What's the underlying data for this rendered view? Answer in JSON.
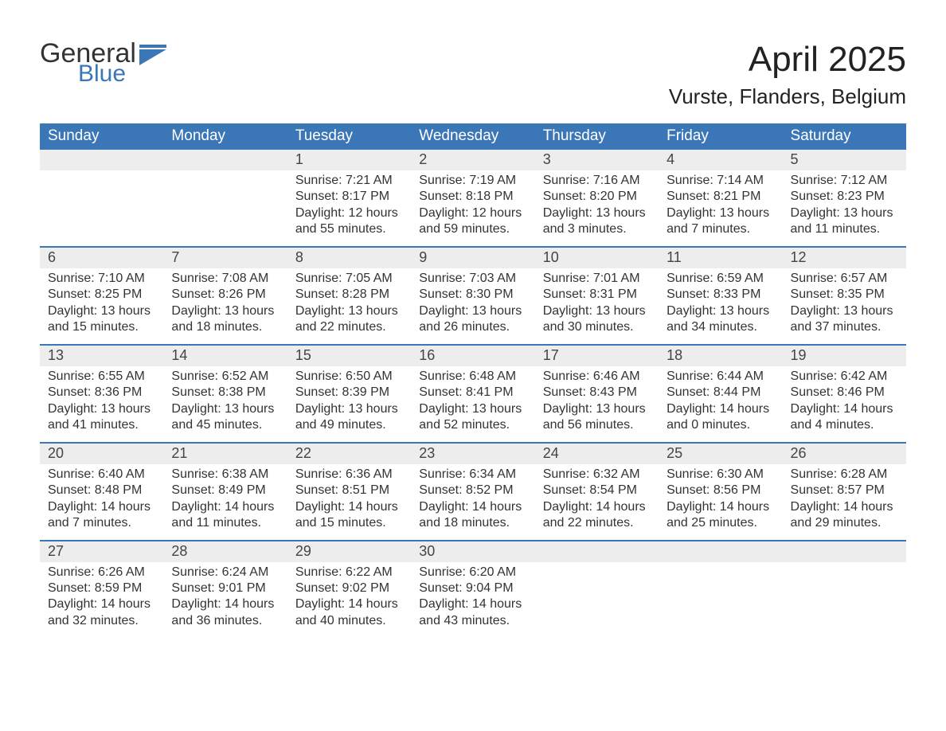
{
  "logo": {
    "word1": "General",
    "word2": "Blue"
  },
  "title": "April 2025",
  "location": "Vurste, Flanders, Belgium",
  "colors": {
    "header_bg": "#3b77b7",
    "header_text": "#ffffff",
    "daynum_bg": "#ededed",
    "text": "#333333",
    "rule": "#3b77b7",
    "logo_blue": "#3b77b7"
  },
  "day_headers": [
    "Sunday",
    "Monday",
    "Tuesday",
    "Wednesday",
    "Thursday",
    "Friday",
    "Saturday"
  ],
  "weeks": [
    [
      {
        "num": "",
        "sunrise": "",
        "sunset": "",
        "daylight": ""
      },
      {
        "num": "",
        "sunrise": "",
        "sunset": "",
        "daylight": ""
      },
      {
        "num": "1",
        "sunrise": "Sunrise: 7:21 AM",
        "sunset": "Sunset: 8:17 PM",
        "daylight": "Daylight: 12 hours and 55 minutes."
      },
      {
        "num": "2",
        "sunrise": "Sunrise: 7:19 AM",
        "sunset": "Sunset: 8:18 PM",
        "daylight": "Daylight: 12 hours and 59 minutes."
      },
      {
        "num": "3",
        "sunrise": "Sunrise: 7:16 AM",
        "sunset": "Sunset: 8:20 PM",
        "daylight": "Daylight: 13 hours and 3 minutes."
      },
      {
        "num": "4",
        "sunrise": "Sunrise: 7:14 AM",
        "sunset": "Sunset: 8:21 PM",
        "daylight": "Daylight: 13 hours and 7 minutes."
      },
      {
        "num": "5",
        "sunrise": "Sunrise: 7:12 AM",
        "sunset": "Sunset: 8:23 PM",
        "daylight": "Daylight: 13 hours and 11 minutes."
      }
    ],
    [
      {
        "num": "6",
        "sunrise": "Sunrise: 7:10 AM",
        "sunset": "Sunset: 8:25 PM",
        "daylight": "Daylight: 13 hours and 15 minutes."
      },
      {
        "num": "7",
        "sunrise": "Sunrise: 7:08 AM",
        "sunset": "Sunset: 8:26 PM",
        "daylight": "Daylight: 13 hours and 18 minutes."
      },
      {
        "num": "8",
        "sunrise": "Sunrise: 7:05 AM",
        "sunset": "Sunset: 8:28 PM",
        "daylight": "Daylight: 13 hours and 22 minutes."
      },
      {
        "num": "9",
        "sunrise": "Sunrise: 7:03 AM",
        "sunset": "Sunset: 8:30 PM",
        "daylight": "Daylight: 13 hours and 26 minutes."
      },
      {
        "num": "10",
        "sunrise": "Sunrise: 7:01 AM",
        "sunset": "Sunset: 8:31 PM",
        "daylight": "Daylight: 13 hours and 30 minutes."
      },
      {
        "num": "11",
        "sunrise": "Sunrise: 6:59 AM",
        "sunset": "Sunset: 8:33 PM",
        "daylight": "Daylight: 13 hours and 34 minutes."
      },
      {
        "num": "12",
        "sunrise": "Sunrise: 6:57 AM",
        "sunset": "Sunset: 8:35 PM",
        "daylight": "Daylight: 13 hours and 37 minutes."
      }
    ],
    [
      {
        "num": "13",
        "sunrise": "Sunrise: 6:55 AM",
        "sunset": "Sunset: 8:36 PM",
        "daylight": "Daylight: 13 hours and 41 minutes."
      },
      {
        "num": "14",
        "sunrise": "Sunrise: 6:52 AM",
        "sunset": "Sunset: 8:38 PM",
        "daylight": "Daylight: 13 hours and 45 minutes."
      },
      {
        "num": "15",
        "sunrise": "Sunrise: 6:50 AM",
        "sunset": "Sunset: 8:39 PM",
        "daylight": "Daylight: 13 hours and 49 minutes."
      },
      {
        "num": "16",
        "sunrise": "Sunrise: 6:48 AM",
        "sunset": "Sunset: 8:41 PM",
        "daylight": "Daylight: 13 hours and 52 minutes."
      },
      {
        "num": "17",
        "sunrise": "Sunrise: 6:46 AM",
        "sunset": "Sunset: 8:43 PM",
        "daylight": "Daylight: 13 hours and 56 minutes."
      },
      {
        "num": "18",
        "sunrise": "Sunrise: 6:44 AM",
        "sunset": "Sunset: 8:44 PM",
        "daylight": "Daylight: 14 hours and 0 minutes."
      },
      {
        "num": "19",
        "sunrise": "Sunrise: 6:42 AM",
        "sunset": "Sunset: 8:46 PM",
        "daylight": "Daylight: 14 hours and 4 minutes."
      }
    ],
    [
      {
        "num": "20",
        "sunrise": "Sunrise: 6:40 AM",
        "sunset": "Sunset: 8:48 PM",
        "daylight": "Daylight: 14 hours and 7 minutes."
      },
      {
        "num": "21",
        "sunrise": "Sunrise: 6:38 AM",
        "sunset": "Sunset: 8:49 PM",
        "daylight": "Daylight: 14 hours and 11 minutes."
      },
      {
        "num": "22",
        "sunrise": "Sunrise: 6:36 AM",
        "sunset": "Sunset: 8:51 PM",
        "daylight": "Daylight: 14 hours and 15 minutes."
      },
      {
        "num": "23",
        "sunrise": "Sunrise: 6:34 AM",
        "sunset": "Sunset: 8:52 PM",
        "daylight": "Daylight: 14 hours and 18 minutes."
      },
      {
        "num": "24",
        "sunrise": "Sunrise: 6:32 AM",
        "sunset": "Sunset: 8:54 PM",
        "daylight": "Daylight: 14 hours and 22 minutes."
      },
      {
        "num": "25",
        "sunrise": "Sunrise: 6:30 AM",
        "sunset": "Sunset: 8:56 PM",
        "daylight": "Daylight: 14 hours and 25 minutes."
      },
      {
        "num": "26",
        "sunrise": "Sunrise: 6:28 AM",
        "sunset": "Sunset: 8:57 PM",
        "daylight": "Daylight: 14 hours and 29 minutes."
      }
    ],
    [
      {
        "num": "27",
        "sunrise": "Sunrise: 6:26 AM",
        "sunset": "Sunset: 8:59 PM",
        "daylight": "Daylight: 14 hours and 32 minutes."
      },
      {
        "num": "28",
        "sunrise": "Sunrise: 6:24 AM",
        "sunset": "Sunset: 9:01 PM",
        "daylight": "Daylight: 14 hours and 36 minutes."
      },
      {
        "num": "29",
        "sunrise": "Sunrise: 6:22 AM",
        "sunset": "Sunset: 9:02 PM",
        "daylight": "Daylight: 14 hours and 40 minutes."
      },
      {
        "num": "30",
        "sunrise": "Sunrise: 6:20 AM",
        "sunset": "Sunset: 9:04 PM",
        "daylight": "Daylight: 14 hours and 43 minutes."
      },
      {
        "num": "",
        "sunrise": "",
        "sunset": "",
        "daylight": ""
      },
      {
        "num": "",
        "sunrise": "",
        "sunset": "",
        "daylight": ""
      },
      {
        "num": "",
        "sunrise": "",
        "sunset": "",
        "daylight": ""
      }
    ]
  ]
}
